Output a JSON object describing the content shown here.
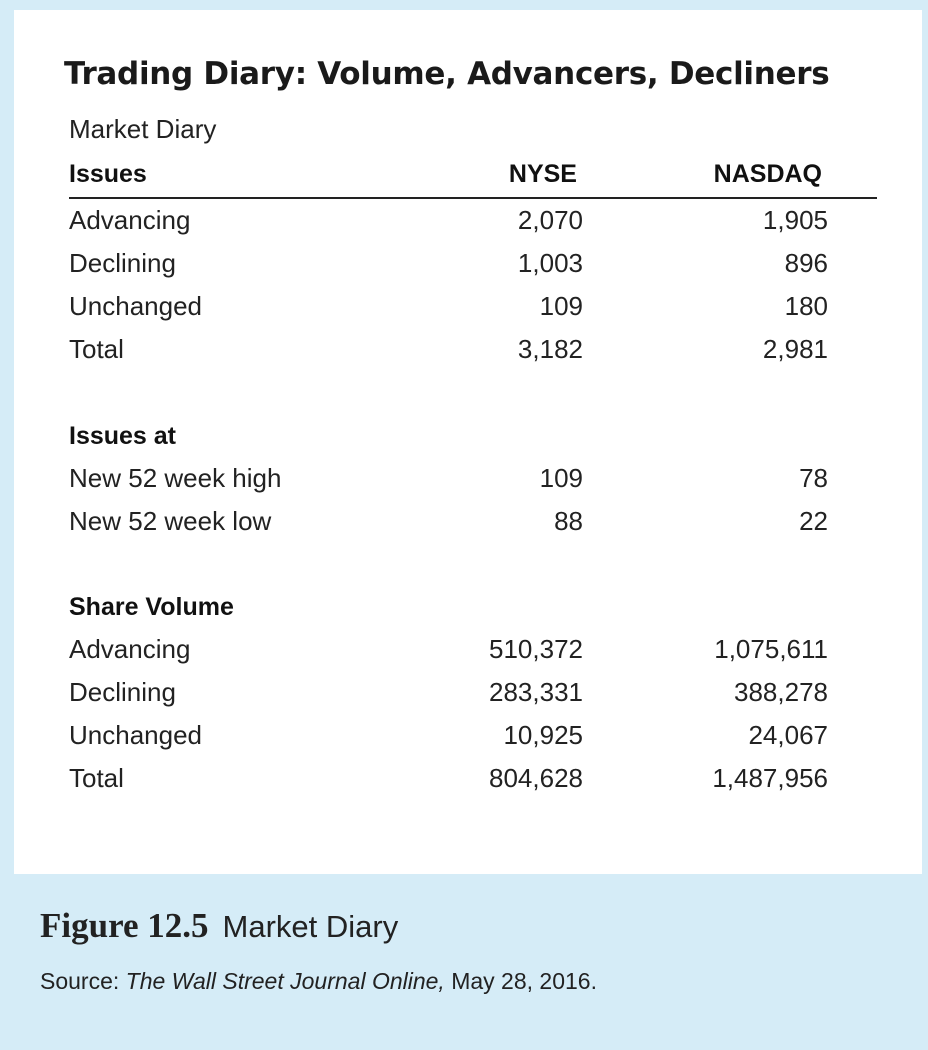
{
  "title": "Trading Diary: Volume, Advancers, Decliners",
  "subtitle": "Market Diary",
  "columns": [
    "Issues",
    "NYSE",
    "NASDAQ"
  ],
  "issues": [
    {
      "label": "Advancing",
      "nyse": "2,070",
      "nasdaq": "1,905"
    },
    {
      "label": "Declining",
      "nyse": "1,003",
      "nasdaq": "896"
    },
    {
      "label": "Unchanged",
      "nyse": "109",
      "nasdaq": "180"
    },
    {
      "label": "Total",
      "nyse": "3,182",
      "nasdaq": "2,981"
    }
  ],
  "issues_at": {
    "heading": "Issues at",
    "rows": [
      {
        "label": "New 52 week high",
        "nyse": "109",
        "nasdaq": "78"
      },
      {
        "label": "New 52 week low",
        "nyse": "88",
        "nasdaq": "22"
      }
    ]
  },
  "share_volume": {
    "heading": "Share Volume",
    "rows": [
      {
        "label": "Advancing",
        "nyse": "510,372",
        "nasdaq": "1,075,611"
      },
      {
        "label": "Declining",
        "nyse": "283,331",
        "nasdaq": "388,278"
      },
      {
        "label": "Unchanged",
        "nyse": "10,925",
        "nasdaq": "24,067"
      },
      {
        "label": "Total",
        "nyse": "804,628",
        "nasdaq": "1,487,956"
      }
    ]
  },
  "caption": {
    "figure_number": "Figure 12.5",
    "figure_title": "Market Diary",
    "source_prefix": "Source: ",
    "source_publication": "The Wall Street Journal Online,",
    "source_date": " May 28, 2016."
  },
  "colors": {
    "background": "#d5ecf7",
    "panel": "#ffffff",
    "text": "#1a1a1a"
  }
}
